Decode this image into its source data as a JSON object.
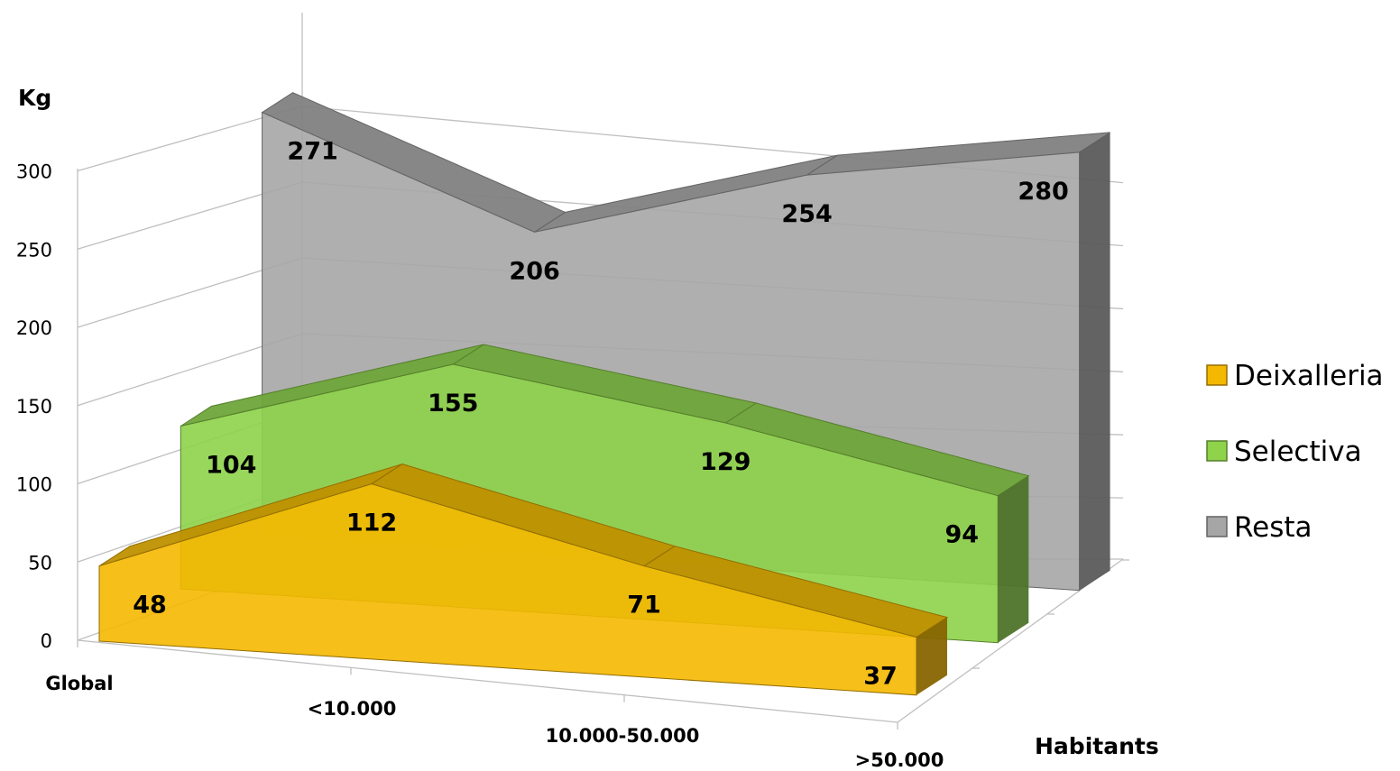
{
  "chart_data": {
    "type": "area",
    "view": "3d",
    "categories": [
      "Global",
      "<10.000",
      "10.000-50.000",
      ">50.000"
    ],
    "series": [
      {
        "name": "Deixalleria",
        "values": [
          48,
          112,
          71,
          37
        ],
        "color": "#F5B800"
      },
      {
        "name": "Selectiva",
        "values": [
          104,
          155,
          129,
          94
        ],
        "color": "#8ED34A"
      },
      {
        "name": "Resta",
        "values": [
          271,
          206,
          254,
          280
        ],
        "color": "#A6A6A6"
      }
    ],
    "xlabel": "Habitants",
    "ylabel": "Kg",
    "ylim": [
      0,
      300
    ],
    "yticks": [
      "0",
      "50",
      "100",
      "150",
      "200",
      "250",
      "300"
    ],
    "grid": true,
    "legend_position": "right",
    "data_labels": true
  }
}
